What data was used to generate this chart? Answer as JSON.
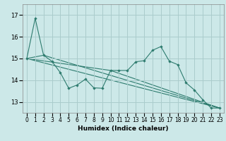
{
  "xlabel": "Humidex (Indice chaleur)",
  "background_color": "#cce8e8",
  "grid_color": "#aacccc",
  "line_color": "#2d7b6e",
  "ylim": [
    12.5,
    17.5
  ],
  "xlim": [
    -0.5,
    23.5
  ],
  "yticks": [
    13,
    14,
    15,
    16,
    17
  ],
  "xticks": [
    0,
    1,
    2,
    3,
    4,
    5,
    6,
    7,
    8,
    9,
    10,
    11,
    12,
    13,
    14,
    15,
    16,
    17,
    18,
    19,
    20,
    21,
    22,
    23
  ],
  "jagged_x": [
    0,
    1,
    2,
    3,
    4,
    5,
    6,
    7,
    8,
    9,
    10,
    11,
    12,
    13,
    14,
    15,
    16,
    17,
    18,
    19,
    20,
    21,
    22,
    23
  ],
  "jagged_y": [
    15.0,
    16.85,
    15.15,
    14.87,
    14.35,
    13.63,
    13.78,
    14.05,
    13.65,
    13.63,
    14.45,
    14.45,
    14.45,
    14.85,
    14.9,
    15.38,
    15.55,
    14.88,
    14.72,
    13.88,
    13.55,
    13.1,
    12.72,
    12.72
  ],
  "trend1_x": [
    0,
    23
  ],
  "trend1_y": [
    15.0,
    12.72
  ],
  "trend2_x": [
    0,
    2,
    23
  ],
  "trend2_y": [
    15.0,
    15.15,
    12.72
  ],
  "trend3_x": [
    0,
    10,
    23
  ],
  "trend3_y": [
    15.0,
    14.45,
    12.72
  ]
}
